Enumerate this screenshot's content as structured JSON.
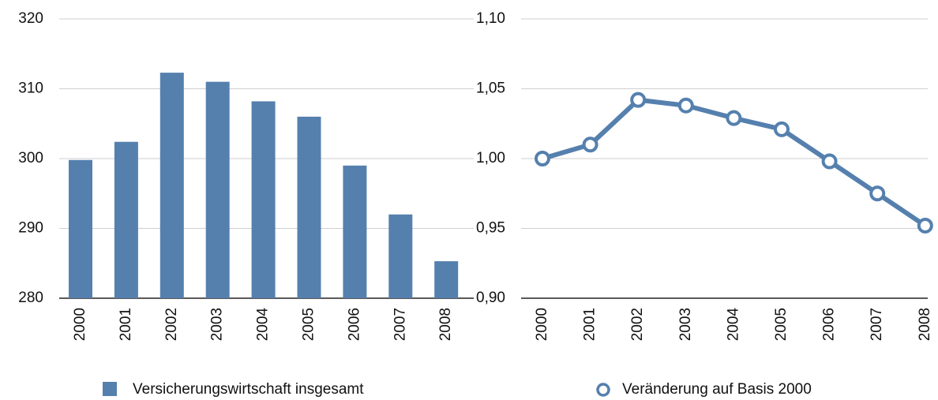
{
  "chart_data": [
    {
      "type": "bar",
      "categories": [
        "2000",
        "2001",
        "2002",
        "2003",
        "2004",
        "2005",
        "2006",
        "2007",
        "2008"
      ],
      "series": [
        {
          "name": "Versicherungswirtschaft insgesamt",
          "color": "#5580ae",
          "values": [
            299.8,
            302.4,
            312.3,
            311.0,
            308.2,
            306.0,
            299.0,
            292.0,
            285.3
          ]
        }
      ],
      "ylim": [
        280,
        320
      ],
      "yticks": [
        280,
        290,
        300,
        310,
        320
      ],
      "grid": true,
      "legend": "bottom"
    },
    {
      "type": "line",
      "categories": [
        "2000",
        "2001",
        "2002",
        "2003",
        "2004",
        "2005",
        "2006",
        "2007",
        "2008"
      ],
      "series": [
        {
          "name": "Veränderung auf Basis 2000",
          "color": "#5580ae",
          "values": [
            1.0,
            1.01,
            1.042,
            1.038,
            1.029,
            1.021,
            0.998,
            0.975,
            0.952
          ]
        }
      ],
      "ylim": [
        0.9,
        1.1
      ],
      "yticks": [
        {
          "value": 0.9,
          "label": "0,90"
        },
        {
          "value": 0.95,
          "label": "0,95"
        },
        {
          "value": 1.0,
          "label": "1,00"
        },
        {
          "value": 1.05,
          "label": "1,05"
        },
        {
          "value": 1.1,
          "label": "1,10"
        }
      ],
      "grid": true,
      "legend": "bottom"
    }
  ]
}
